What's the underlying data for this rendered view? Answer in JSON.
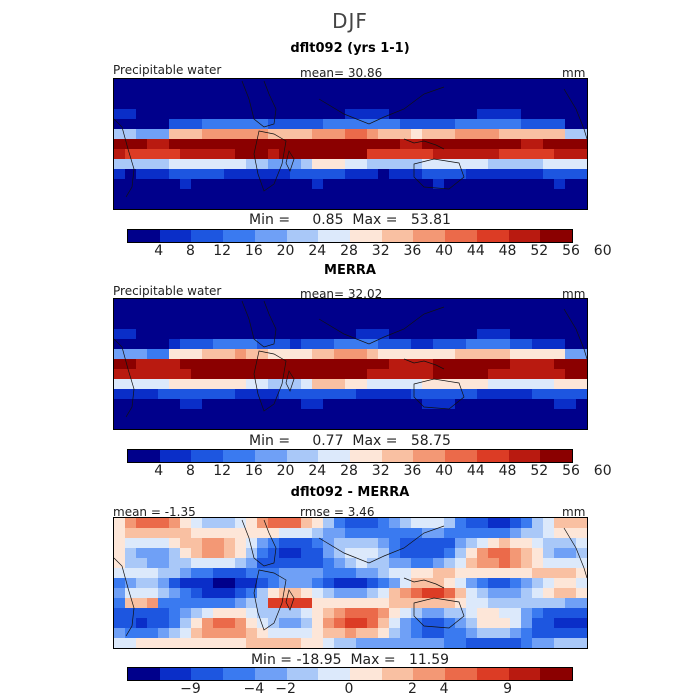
{
  "figure": {
    "title": "DJF"
  },
  "panels": [
    {
      "title": "dflt092 (yrs 1-1)",
      "left_label": "Precipitable water",
      "center_label": "mean=   30.86",
      "units": "mm",
      "minmax": "Min =     0.85  Max =   53.81",
      "field": "model"
    },
    {
      "title": "MERRA",
      "left_label": "Precipitable water",
      "center_label": "mean=   32.02",
      "units": "mm",
      "minmax": "Min =     0.77  Max =   58.75",
      "field": "obs"
    },
    {
      "title": "dflt092 - MERRA",
      "left_label": "mean =   -1.35",
      "center_label": "rmse =     3.46",
      "units": "mm",
      "minmax": "Min = -18.95  Max =   11.59",
      "field": "diff"
    }
  ],
  "colorbars": {
    "colors": [
      "#00008b",
      "#0a2ec8",
      "#1d56e0",
      "#3a7af0",
      "#6fa0f6",
      "#a9c8f8",
      "#dce9fb",
      "#fde6d8",
      "#f9c0a2",
      "#f39875",
      "#eb6a4a",
      "#dc3c25",
      "#b91a10",
      "#8b0000"
    ],
    "precip_ticks": [
      "4",
      "8",
      "12",
      "16",
      "20",
      "24",
      "28",
      "32",
      "36",
      "40",
      "44",
      "48",
      "52",
      "56",
      "60"
    ],
    "diff_ticks": [
      "-9",
      "-4",
      "-2",
      "0",
      "2",
      "4",
      "9"
    ]
  }
}
